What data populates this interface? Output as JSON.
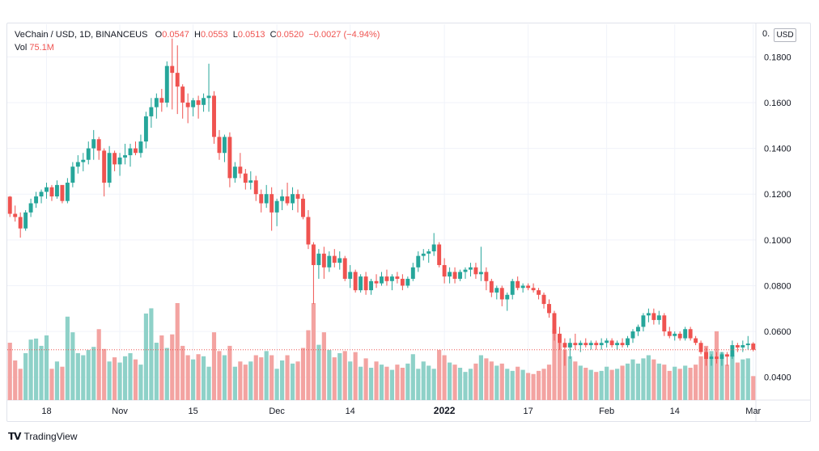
{
  "header": {
    "symbol": "VeChain / USD, 1D, BINANCEUS",
    "o_label": "O",
    "o_value": "0.0547",
    "h_label": "H",
    "h_value": "0.0553",
    "l_label": "L",
    "l_value": "0.0513",
    "c_label": "C",
    "c_value": "0.0520",
    "change": "−0.0027 (−4.94%)",
    "vol_label": "Vol",
    "vol_value": "75.1M"
  },
  "currency_button": "USD",
  "top_price_label": "0.",
  "footer": {
    "brand": "TradingView"
  },
  "colors": {
    "up": "#26a69a",
    "down": "#ef5350",
    "up_vol": "#8ed1c8",
    "down_vol": "#f3a3a1"
  },
  "chart_data": {
    "type": "candlestick",
    "title": "VeChain / USD, 1D, BINANCEUS",
    "ylim": [
      0.03,
      0.19
    ],
    "y_ticks": [
      "0.0400",
      "0.0600",
      "0.0800",
      "0.1000",
      "0.1200",
      "0.1400",
      "0.1600",
      "0.1800"
    ],
    "y_tick_values": [
      0.04,
      0.06,
      0.08,
      0.1,
      0.12,
      0.14,
      0.16,
      0.18
    ],
    "x_ticks": [
      {
        "label": "18",
        "index": 7
      },
      {
        "label": "Nov",
        "index": 21
      },
      {
        "label": "15",
        "index": 35
      },
      {
        "label": "Dec",
        "index": 51
      },
      {
        "label": "14",
        "index": 65
      },
      {
        "label": "2022",
        "index": 83
      },
      {
        "label": "17",
        "index": 99
      },
      {
        "label": "Feb",
        "index": 114
      },
      {
        "label": "14",
        "index": 127
      },
      {
        "label": "Mar",
        "index": 142
      }
    ],
    "last_price": 0.052,
    "candles": [
      [
        0.1189,
        0.1192,
        0.11,
        0.1114,
        5.5
      ],
      [
        0.1114,
        0.115,
        0.108,
        0.11,
        3.8
      ],
      [
        0.11,
        0.112,
        0.101,
        0.105,
        3.0
      ],
      [
        0.105,
        0.113,
        0.104,
        0.112,
        4.5
      ],
      [
        0.112,
        0.118,
        0.11,
        0.116,
        5.8
      ],
      [
        0.116,
        0.121,
        0.114,
        0.119,
        5.9
      ],
      [
        0.119,
        0.122,
        0.116,
        0.121,
        5.2
      ],
      [
        0.121,
        0.125,
        0.118,
        0.123,
        6.2
      ],
      [
        0.123,
        0.124,
        0.117,
        0.119,
        3.0
      ],
      [
        0.119,
        0.126,
        0.118,
        0.124,
        3.7
      ],
      [
        0.124,
        0.123,
        0.116,
        0.117,
        3.2
      ],
      [
        0.117,
        0.127,
        0.116,
        0.125,
        8.0
      ],
      [
        0.125,
        0.134,
        0.123,
        0.132,
        6.5
      ],
      [
        0.132,
        0.137,
        0.129,
        0.134,
        4.5
      ],
      [
        0.134,
        0.138,
        0.13,
        0.135,
        4.3
      ],
      [
        0.135,
        0.143,
        0.133,
        0.14,
        4.8
      ],
      [
        0.14,
        0.148,
        0.135,
        0.144,
        5.1
      ],
      [
        0.144,
        0.145,
        0.135,
        0.139,
        6.8
      ],
      [
        0.139,
        0.14,
        0.119,
        0.125,
        4.9
      ],
      [
        0.125,
        0.141,
        0.123,
        0.138,
        3.7
      ],
      [
        0.138,
        0.139,
        0.13,
        0.133,
        4.1
      ],
      [
        0.133,
        0.138,
        0.128,
        0.136,
        3.6
      ],
      [
        0.136,
        0.142,
        0.133,
        0.137,
        4.2
      ],
      [
        0.137,
        0.142,
        0.132,
        0.14,
        4.5
      ],
      [
        0.14,
        0.143,
        0.137,
        0.138,
        3.9
      ],
      [
        0.138,
        0.146,
        0.136,
        0.143,
        3.4
      ],
      [
        0.143,
        0.156,
        0.14,
        0.154,
        8.3
      ],
      [
        0.154,
        0.162,
        0.149,
        0.158,
        8.8
      ],
      [
        0.158,
        0.164,
        0.153,
        0.162,
        5.5
      ],
      [
        0.162,
        0.166,
        0.156,
        0.16,
        6.2
      ],
      [
        0.16,
        0.178,
        0.158,
        0.176,
        5.0
      ],
      [
        0.176,
        0.188,
        0.157,
        0.173,
        6.3
      ],
      [
        0.173,
        0.185,
        0.155,
        0.167,
        9.3
      ],
      [
        0.167,
        0.168,
        0.153,
        0.16,
        5.2
      ],
      [
        0.16,
        0.164,
        0.151,
        0.158,
        4.3
      ],
      [
        0.158,
        0.162,
        0.154,
        0.161,
        3.9
      ],
      [
        0.161,
        0.163,
        0.153,
        0.159,
        4.4
      ],
      [
        0.159,
        0.164,
        0.156,
        0.162,
        4.2
      ],
      [
        0.162,
        0.177,
        0.156,
        0.163,
        3.2
      ],
      [
        0.163,
        0.165,
        0.142,
        0.145,
        6.5
      ],
      [
        0.145,
        0.148,
        0.135,
        0.138,
        4.7
      ],
      [
        0.138,
        0.146,
        0.134,
        0.145,
        4.3
      ],
      [
        0.145,
        0.147,
        0.123,
        0.127,
        5.2
      ],
      [
        0.127,
        0.134,
        0.125,
        0.132,
        3.2
      ],
      [
        0.132,
        0.138,
        0.127,
        0.129,
        3.7
      ],
      [
        0.129,
        0.131,
        0.122,
        0.125,
        3.4
      ],
      [
        0.125,
        0.13,
        0.122,
        0.126,
        3.7
      ],
      [
        0.126,
        0.128,
        0.117,
        0.12,
        4.3
      ],
      [
        0.12,
        0.122,
        0.112,
        0.116,
        4.1
      ],
      [
        0.116,
        0.124,
        0.114,
        0.12,
        4.7
      ],
      [
        0.12,
        0.123,
        0.104,
        0.112,
        4.3
      ],
      [
        0.112,
        0.118,
        0.106,
        0.117,
        3.0
      ],
      [
        0.117,
        0.122,
        0.113,
        0.119,
        3.8
      ],
      [
        0.119,
        0.125,
        0.115,
        0.116,
        4.3
      ],
      [
        0.116,
        0.123,
        0.113,
        0.12,
        3.5
      ],
      [
        0.12,
        0.122,
        0.112,
        0.118,
        3.7
      ],
      [
        0.118,
        0.12,
        0.109,
        0.11,
        5.0
      ],
      [
        0.11,
        0.113,
        0.096,
        0.098,
        6.7
      ],
      [
        0.098,
        0.099,
        0.072,
        0.089,
        9.3
      ],
      [
        0.089,
        0.096,
        0.083,
        0.094,
        5.3
      ],
      [
        0.094,
        0.097,
        0.083,
        0.088,
        6.5
      ],
      [
        0.088,
        0.095,
        0.086,
        0.093,
        4.8
      ],
      [
        0.093,
        0.096,
        0.088,
        0.09,
        4.1
      ],
      [
        0.09,
        0.095,
        0.087,
        0.092,
        4.5
      ],
      [
        0.092,
        0.093,
        0.082,
        0.083,
        4.7
      ],
      [
        0.083,
        0.089,
        0.079,
        0.086,
        3.7
      ],
      [
        0.086,
        0.087,
        0.077,
        0.078,
        4.6
      ],
      [
        0.078,
        0.085,
        0.077,
        0.084,
        3.2
      ],
      [
        0.084,
        0.086,
        0.076,
        0.078,
        4.0
      ],
      [
        0.078,
        0.083,
        0.076,
        0.082,
        3.1
      ],
      [
        0.082,
        0.085,
        0.079,
        0.081,
        3.7
      ],
      [
        0.081,
        0.086,
        0.08,
        0.084,
        3.4
      ],
      [
        0.084,
        0.087,
        0.08,
        0.082,
        3.2
      ],
      [
        0.082,
        0.085,
        0.078,
        0.084,
        2.9
      ],
      [
        0.084,
        0.086,
        0.081,
        0.083,
        3.4
      ],
      [
        0.083,
        0.085,
        0.078,
        0.08,
        3.1
      ],
      [
        0.08,
        0.084,
        0.079,
        0.083,
        3.5
      ],
      [
        0.083,
        0.09,
        0.082,
        0.088,
        4.4
      ],
      [
        0.088,
        0.095,
        0.086,
        0.093,
        3.0
      ],
      [
        0.093,
        0.096,
        0.091,
        0.094,
        3.7
      ],
      [
        0.094,
        0.096,
        0.09,
        0.095,
        3.3
      ],
      [
        0.095,
        0.103,
        0.093,
        0.098,
        3.0
      ],
      [
        0.098,
        0.099,
        0.088,
        0.089,
        4.8
      ],
      [
        0.089,
        0.092,
        0.081,
        0.084,
        4.3
      ],
      [
        0.084,
        0.088,
        0.081,
        0.086,
        3.6
      ],
      [
        0.086,
        0.088,
        0.081,
        0.083,
        3.4
      ],
      [
        0.083,
        0.087,
        0.082,
        0.086,
        3.1
      ],
      [
        0.086,
        0.088,
        0.083,
        0.087,
        2.7
      ],
      [
        0.087,
        0.09,
        0.084,
        0.088,
        3.0
      ],
      [
        0.088,
        0.09,
        0.083,
        0.085,
        3.5
      ],
      [
        0.085,
        0.097,
        0.082,
        0.086,
        4.3
      ],
      [
        0.086,
        0.088,
        0.078,
        0.082,
        4.0
      ],
      [
        0.082,
        0.083,
        0.075,
        0.077,
        3.7
      ],
      [
        0.077,
        0.08,
        0.074,
        0.079,
        3.3
      ],
      [
        0.079,
        0.08,
        0.071,
        0.074,
        3.5
      ],
      [
        0.074,
        0.077,
        0.069,
        0.076,
        3.0
      ],
      [
        0.076,
        0.083,
        0.074,
        0.082,
        2.8
      ],
      [
        0.082,
        0.084,
        0.078,
        0.079,
        3.2
      ],
      [
        0.079,
        0.081,
        0.077,
        0.08,
        2.9
      ],
      [
        0.08,
        0.081,
        0.078,
        0.079,
        2.6
      ],
      [
        0.079,
        0.081,
        0.077,
        0.078,
        2.5
      ],
      [
        0.078,
        0.079,
        0.074,
        0.076,
        2.8
      ],
      [
        0.076,
        0.077,
        0.07,
        0.072,
        3.0
      ],
      [
        0.072,
        0.074,
        0.066,
        0.068,
        3.4
      ],
      [
        0.068,
        0.069,
        0.056,
        0.059,
        6.8
      ],
      [
        0.059,
        0.062,
        0.052,
        0.055,
        5.5
      ],
      [
        0.055,
        0.057,
        0.045,
        0.053,
        4.8
      ],
      [
        0.053,
        0.057,
        0.048,
        0.055,
        4.2
      ],
      [
        0.055,
        0.059,
        0.052,
        0.054,
        3.7
      ],
      [
        0.054,
        0.056,
        0.051,
        0.055,
        3.3
      ],
      [
        0.055,
        0.057,
        0.053,
        0.054,
        3.1
      ],
      [
        0.054,
        0.056,
        0.052,
        0.055,
        2.9
      ],
      [
        0.055,
        0.056,
        0.052,
        0.054,
        2.7
      ],
      [
        0.054,
        0.057,
        0.052,
        0.055,
        2.8
      ],
      [
        0.055,
        0.057,
        0.053,
        0.056,
        3.2
      ],
      [
        0.056,
        0.057,
        0.053,
        0.054,
        2.9
      ],
      [
        0.054,
        0.056,
        0.052,
        0.055,
        3.0
      ],
      [
        0.055,
        0.057,
        0.053,
        0.054,
        3.3
      ],
      [
        0.054,
        0.058,
        0.053,
        0.057,
        3.5
      ],
      [
        0.057,
        0.061,
        0.055,
        0.06,
        3.9
      ],
      [
        0.06,
        0.063,
        0.058,
        0.062,
        3.5
      ],
      [
        0.062,
        0.068,
        0.06,
        0.067,
        4.0
      ],
      [
        0.067,
        0.07,
        0.064,
        0.068,
        4.3
      ],
      [
        0.068,
        0.07,
        0.063,
        0.065,
        3.9
      ],
      [
        0.065,
        0.069,
        0.063,
        0.067,
        3.5
      ],
      [
        0.067,
        0.068,
        0.058,
        0.06,
        3.4
      ],
      [
        0.06,
        0.062,
        0.057,
        0.058,
        2.8
      ],
      [
        0.058,
        0.06,
        0.056,
        0.059,
        3.2
      ],
      [
        0.059,
        0.06,
        0.056,
        0.057,
        3.0
      ],
      [
        0.057,
        0.062,
        0.056,
        0.061,
        3.3
      ],
      [
        0.061,
        0.062,
        0.056,
        0.057,
        3.1
      ],
      [
        0.057,
        0.058,
        0.054,
        0.055,
        3.4
      ],
      [
        0.055,
        0.056,
        0.05,
        0.051,
        4.2
      ],
      [
        0.051,
        0.053,
        0.045,
        0.048,
        5.2
      ],
      [
        0.048,
        0.05,
        0.045,
        0.049,
        4.7
      ],
      [
        0.049,
        0.051,
        0.046,
        0.048,
        6.6
      ],
      [
        0.048,
        0.051,
        0.045,
        0.05,
        4.6
      ],
      [
        0.05,
        0.051,
        0.045,
        0.049,
        3.4
      ],
      [
        0.049,
        0.056,
        0.048,
        0.054,
        4.3
      ],
      [
        0.054,
        0.055,
        0.051,
        0.053,
        3.6
      ],
      [
        0.053,
        0.056,
        0.051,
        0.054,
        3.9
      ],
      [
        0.054,
        0.058,
        0.052,
        0.0547,
        4.0
      ],
      [
        0.0547,
        0.0553,
        0.0513,
        0.052,
        2.3
      ]
    ]
  }
}
